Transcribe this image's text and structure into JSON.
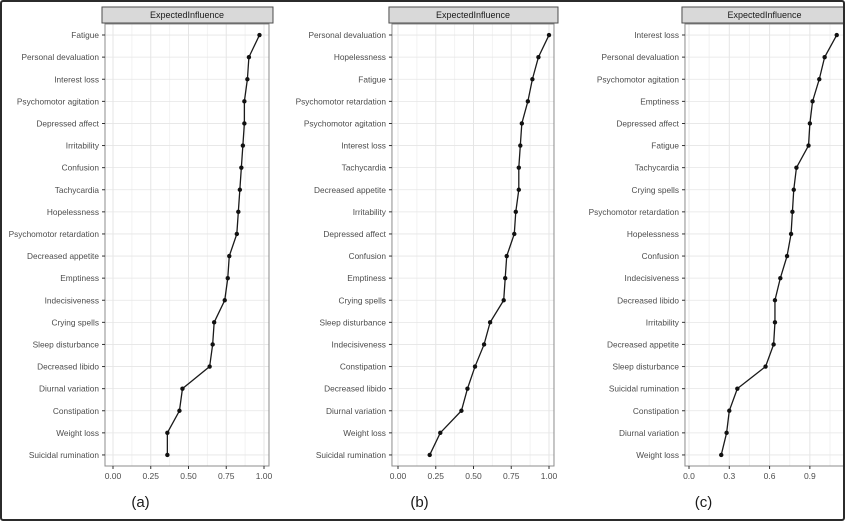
{
  "figure": {
    "facet_header": "ExpectedInfluence",
    "captions": [
      "(a)",
      "(b)",
      "(c)"
    ]
  },
  "style": {
    "strip_bg": "#d9d9d9",
    "strip_border": "#4d4d4d",
    "panel_border": "#8c8c8c",
    "grid_major": "#e5e5e5",
    "grid_minor": "#f2f2f2",
    "axis_text": "#4d4d4d",
    "strip_text": "#1a1a1a",
    "line_color": "#1a1a1a",
    "point_color": "#111111",
    "frame_color": "#2b2b2b"
  },
  "chart_data": [
    {
      "type": "line",
      "caption": "(a)",
      "header": "ExpectedInfluence",
      "orientation": "horizontal-dotline",
      "categories": [
        "Fatigue",
        "Personal devaluation",
        "Interest loss",
        "Psychomotor agitation",
        "Depressed affect",
        "Irritability",
        "Confusion",
        "Tachycardia",
        "Hopelessness",
        "Psychomotor retardation",
        "Decreased appetite",
        "Emptiness",
        "Indecisiveness",
        "Crying spells",
        "Sleep disturbance",
        "Decreased libido",
        "Diurnal variation",
        "Constipation",
        "Weight loss",
        "Suicidal rumination"
      ],
      "values": [
        0.97,
        0.9,
        0.89,
        0.87,
        0.87,
        0.86,
        0.85,
        0.84,
        0.83,
        0.82,
        0.77,
        0.76,
        0.74,
        0.67,
        0.66,
        0.64,
        0.46,
        0.44,
        0.36,
        0.36
      ],
      "xlabel": "",
      "ylabel": "",
      "xticks": {
        "values": [
          0,
          0.25,
          0.5,
          0.75,
          1.0
        ],
        "labels": [
          "0.00",
          "0.25",
          "0.50",
          "0.75",
          "1.00"
        ]
      },
      "xminor": [
        0.125,
        0.375,
        0.625,
        0.875
      ],
      "xlim": [
        -0.053,
        1.033
      ],
      "grid": true,
      "legend": "none"
    },
    {
      "type": "line",
      "caption": "(b)",
      "header": "ExpectedInfluence",
      "orientation": "horizontal-dotline",
      "categories": [
        "Personal devaluation",
        "Hopelessness",
        "Fatigue",
        "Psychomotor retardation",
        "Psychomotor agitation",
        "Interest loss",
        "Tachycardia",
        "Decreased appetite",
        "Irritability",
        "Depressed affect",
        "Confusion",
        "Emptiness",
        "Crying spells",
        "Sleep disturbance",
        "Indecisiveness",
        "Constipation",
        "Decreased libido",
        "Diurnal variation",
        "Weight loss",
        "Suicidal rumination"
      ],
      "values": [
        1.0,
        0.93,
        0.89,
        0.86,
        0.82,
        0.81,
        0.8,
        0.8,
        0.78,
        0.77,
        0.72,
        0.71,
        0.7,
        0.61,
        0.57,
        0.51,
        0.46,
        0.42,
        0.28,
        0.21
      ],
      "xlabel": "",
      "ylabel": "",
      "xticks": {
        "values": [
          0,
          0.25,
          0.5,
          0.75,
          1.0
        ],
        "labels": [
          "0.00",
          "0.25",
          "0.50",
          "0.75",
          "1.00"
        ]
      },
      "xminor": [
        0.125,
        0.375,
        0.625,
        0.875
      ],
      "xlim": [
        -0.04,
        1.033
      ],
      "grid": true,
      "legend": "none"
    },
    {
      "type": "line",
      "caption": "(c)",
      "header": "ExpectedInfluence",
      "orientation": "horizontal-dotline",
      "categories": [
        "Interest loss",
        "Personal devaluation",
        "Psychomotor agitation",
        "Emptiness",
        "Depressed affect",
        "Fatigue",
        "Tachycardia",
        "Crying spells",
        "Psychomotor retardation",
        "Hopelessness",
        "Confusion",
        "Indecisiveness",
        "Decreased libido",
        "Irritability",
        "Decreased appetite",
        "Sleep disturbance",
        "Suicidal rumination",
        "Constipation",
        "Diurnal variation",
        "Weight loss"
      ],
      "values": [
        1.1,
        1.01,
        0.97,
        0.92,
        0.9,
        0.89,
        0.8,
        0.78,
        0.77,
        0.76,
        0.73,
        0.68,
        0.64,
        0.64,
        0.63,
        0.57,
        0.36,
        0.3,
        0.28,
        0.24
      ],
      "xlabel": "",
      "ylabel": "",
      "xticks": {
        "values": [
          0,
          0.3,
          0.6,
          0.9
        ],
        "labels": [
          "0.0",
          "0.3",
          "0.6",
          "0.9"
        ]
      },
      "xminor": [
        0.15,
        0.45,
        0.75,
        1.05
      ],
      "xlim": [
        -0.03,
        1.154
      ],
      "grid": true,
      "legend": "none"
    }
  ]
}
